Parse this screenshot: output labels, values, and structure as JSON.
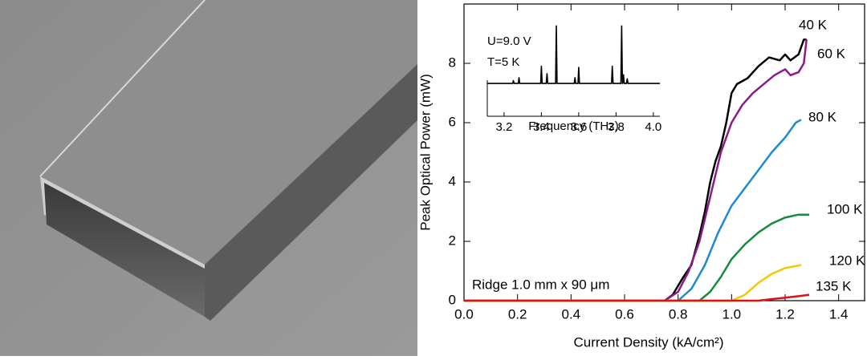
{
  "chart_data": [
    {
      "type": "line",
      "xlabel": "Current Density (kA/cm²)",
      "ylabel": "Peak Optical Power (mW)",
      "annotation": "Ridge 1.0 mm x 90 μm",
      "xlim": [
        0,
        1.5
      ],
      "ylim": [
        0,
        10
      ],
      "xticks": [
        {
          "value": 0,
          "label": "0.0"
        },
        0.2,
        0.4,
        0.6,
        0.8,
        {
          "value": 1,
          "label": "1.0"
        },
        1.2,
        1.4
      ],
      "yticks": [
        0,
        2,
        4,
        6,
        8
      ],
      "series": [
        {
          "name": "40 K",
          "color": "#000000",
          "x": [
            0,
            0.75,
            0.78,
            0.82,
            0.85,
            0.88,
            0.9,
            0.92,
            0.94,
            0.96,
            0.98,
            1.0,
            1.02,
            1.06,
            1.1,
            1.14,
            1.18,
            1.2,
            1.22,
            1.25,
            1.27,
            1.28
          ],
          "values": [
            0,
            0,
            0.2,
            0.8,
            1.2,
            2.2,
            3.0,
            4.0,
            4.7,
            5.2,
            6.0,
            7.0,
            7.3,
            7.5,
            7.9,
            8.2,
            8.1,
            8.3,
            8.1,
            8.3,
            8.8,
            8.8
          ]
        },
        {
          "name": "60 K",
          "color": "#8b1a89",
          "x": [
            0,
            0.75,
            0.8,
            0.84,
            0.88,
            0.92,
            0.96,
            1.0,
            1.04,
            1.08,
            1.12,
            1.16,
            1.2,
            1.22,
            1.25,
            1.27,
            1.28
          ],
          "values": [
            0,
            0,
            0.3,
            1.0,
            2.0,
            3.5,
            5.0,
            6.0,
            6.6,
            7.0,
            7.3,
            7.6,
            7.8,
            7.6,
            7.7,
            8.0,
            8.8
          ]
        },
        {
          "name": "80 K",
          "color": "#1f8ad0",
          "x": [
            0,
            0.8,
            0.85,
            0.9,
            0.95,
            1.0,
            1.05,
            1.1,
            1.15,
            1.2,
            1.24,
            1.26
          ],
          "values": [
            0,
            0,
            0.4,
            1.2,
            2.3,
            3.2,
            3.8,
            4.4,
            5.0,
            5.5,
            6.0,
            6.1
          ]
        },
        {
          "name": "100 K",
          "color": "#178a3c",
          "x": [
            0,
            0.88,
            0.92,
            0.96,
            1.0,
            1.05,
            1.1,
            1.15,
            1.2,
            1.25,
            1.29
          ],
          "values": [
            0,
            0,
            0.3,
            0.8,
            1.4,
            1.9,
            2.3,
            2.6,
            2.8,
            2.9,
            2.9
          ]
        },
        {
          "name": "120 K",
          "color": "#f5c800",
          "x": [
            0,
            1.0,
            1.05,
            1.1,
            1.15,
            1.2,
            1.26
          ],
          "values": [
            0,
            0,
            0.2,
            0.6,
            0.9,
            1.1,
            1.2
          ]
        },
        {
          "name": "135 K",
          "color": "#e01010",
          "x": [
            0,
            1.1,
            1.15,
            1.2,
            1.25,
            1.29
          ],
          "values": [
            0,
            0,
            0.05,
            0.1,
            0.15,
            0.2
          ]
        }
      ]
    },
    {
      "type": "line",
      "xlabel": "Frequency (THz)",
      "annotations": [
        "U=9.0 V",
        "T=5 K"
      ],
      "xlim": [
        3.11,
        4.035
      ],
      "ylim": [
        -0.57,
        1.06
      ],
      "xticks": [
        3.2,
        3.4,
        3.6,
        3.8,
        {
          "value": 4,
          "label": "4.0"
        }
      ],
      "color": "#000000",
      "x": [
        3.11,
        3.246,
        3.25,
        3.254,
        3.276,
        3.28,
        3.284,
        3.396,
        3.4,
        3.404,
        3.426,
        3.43,
        3.434,
        3.476,
        3.48,
        3.484,
        3.576,
        3.58,
        3.584,
        3.596,
        3.6,
        3.604,
        3.776,
        3.78,
        3.784,
        3.826,
        3.83,
        3.834,
        3.836,
        3.84,
        3.844,
        3.856,
        3.86,
        3.864,
        4.035
      ],
      "values": [
        0,
        0,
        0.05,
        0,
        0,
        0.1,
        0,
        0,
        0.3,
        0,
        0,
        0.17,
        0,
        0,
        1,
        0,
        0,
        0.1,
        0,
        0,
        0.28,
        0,
        0,
        0.3,
        0,
        0,
        1,
        0,
        0,
        0.15,
        0,
        0,
        0.08,
        0,
        0
      ]
    }
  ]
}
